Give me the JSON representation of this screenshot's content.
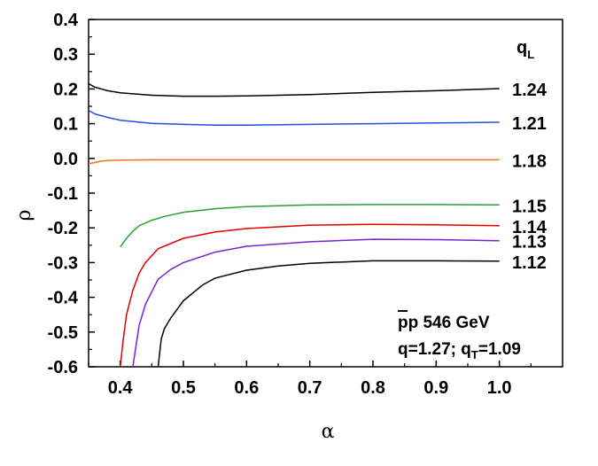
{
  "chart_data": {
    "type": "line",
    "xlabel": "α",
    "ylabel": "ρ",
    "xlim": [
      0.35,
      1.1
    ],
    "ylim": [
      -0.6,
      0.4
    ],
    "xticks": [
      0.4,
      0.5,
      0.6,
      0.7,
      0.8,
      0.9,
      1.0
    ],
    "xtick_labels": [
      "0.4",
      "0.5",
      "0.6",
      "0.7",
      "0.8",
      "0.9",
      "1.0"
    ],
    "yticks": [
      0.4,
      0.3,
      0.2,
      0.1,
      0.0,
      -0.1,
      -0.2,
      -0.3,
      -0.4,
      -0.5,
      -0.6
    ],
    "ytick_labels": [
      "0.4",
      "0.3",
      "0.2",
      "0.1",
      "0.0",
      "-0.1",
      "-0.2",
      "-0.3",
      "-0.4",
      "-0.5",
      "-0.6"
    ],
    "grid": false,
    "legend_title": "q",
    "legend_title_sub": "L",
    "annotation": {
      "line1": "pp 546 GeV",
      "line2_a": "q=1.27; q",
      "line2_sub": "T",
      "line2_b": "=1.09"
    },
    "series": [
      {
        "name": "1.24",
        "color": "#000000",
        "x": [
          0.35,
          0.36,
          0.38,
          0.4,
          0.45,
          0.5,
          0.55,
          0.6,
          0.7,
          0.8,
          0.9,
          1.0
        ],
        "y": [
          0.215,
          0.205,
          0.195,
          0.189,
          0.182,
          0.179,
          0.179,
          0.18,
          0.184,
          0.19,
          0.195,
          0.201
        ]
      },
      {
        "name": "1.21",
        "color": "#1f4fe0",
        "x": [
          0.35,
          0.36,
          0.38,
          0.4,
          0.45,
          0.5,
          0.55,
          0.6,
          0.7,
          0.8,
          0.9,
          1.0
        ],
        "y": [
          0.138,
          0.128,
          0.118,
          0.11,
          0.101,
          0.098,
          0.096,
          0.096,
          0.098,
          0.1,
          0.102,
          0.104
        ]
      },
      {
        "name": "1.18",
        "color": "#f07020",
        "x": [
          0.35,
          0.36,
          0.37,
          0.38,
          0.4,
          0.45,
          0.5,
          0.6,
          0.7,
          0.8,
          0.9,
          1.0
        ],
        "y": [
          -0.015,
          -0.012,
          -0.008,
          -0.006,
          -0.005,
          -0.004,
          -0.004,
          -0.004,
          -0.004,
          -0.004,
          -0.004,
          -0.004
        ]
      },
      {
        "name": "1.15",
        "color": "#2ca02c",
        "x": [
          0.4,
          0.41,
          0.42,
          0.43,
          0.45,
          0.47,
          0.5,
          0.55,
          0.6,
          0.7,
          0.8,
          0.9,
          1.0
        ],
        "y": [
          -0.255,
          -0.23,
          -0.21,
          -0.194,
          -0.178,
          -0.167,
          -0.155,
          -0.145,
          -0.139,
          -0.134,
          -0.133,
          -0.133,
          -0.134
        ]
      },
      {
        "name": "1.14",
        "color": "#e00000",
        "x": [
          0.4,
          0.405,
          0.41,
          0.42,
          0.43,
          0.44,
          0.46,
          0.5,
          0.55,
          0.6,
          0.7,
          0.8,
          0.9,
          1.0
        ],
        "y": [
          -0.6,
          -0.52,
          -0.45,
          -0.38,
          -0.33,
          -0.3,
          -0.26,
          -0.23,
          -0.212,
          -0.202,
          -0.192,
          -0.19,
          -0.191,
          -0.194
        ]
      },
      {
        "name": "1.13",
        "color": "#7a1fd6",
        "x": [
          0.42,
          0.425,
          0.43,
          0.44,
          0.46,
          0.48,
          0.5,
          0.55,
          0.6,
          0.7,
          0.8,
          0.9,
          1.0
        ],
        "y": [
          -0.6,
          -0.54,
          -0.48,
          -0.42,
          -0.348,
          -0.32,
          -0.3,
          -0.27,
          -0.253,
          -0.24,
          -0.233,
          -0.234,
          -0.237
        ]
      },
      {
        "name": "1.12",
        "color": "#000000",
        "x": [
          0.46,
          0.465,
          0.47,
          0.48,
          0.5,
          0.53,
          0.55,
          0.6,
          0.65,
          0.7,
          0.8,
          0.9,
          1.0
        ],
        "y": [
          -0.6,
          -0.52,
          -0.49,
          -0.46,
          -0.41,
          -0.365,
          -0.345,
          -0.322,
          -0.31,
          -0.302,
          -0.295,
          -0.295,
          -0.296
        ]
      }
    ],
    "label_values": [
      0.201,
      0.104,
      -0.004,
      -0.134,
      -0.194,
      -0.237,
      -0.296
    ]
  }
}
